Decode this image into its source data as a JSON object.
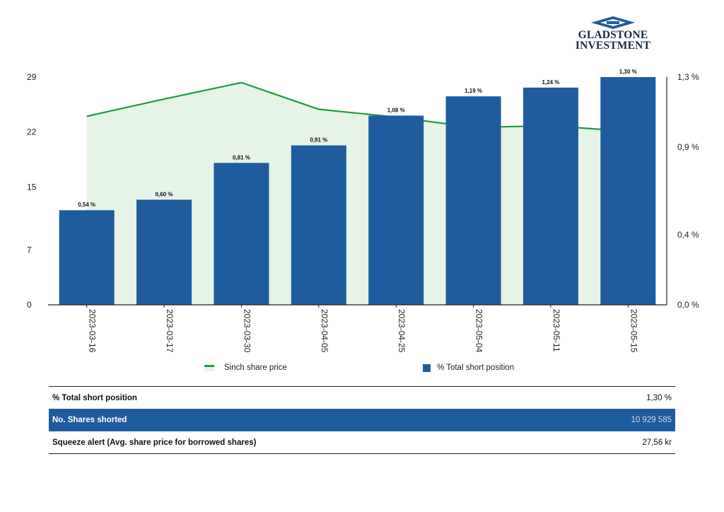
{
  "brand": {
    "line1": "GLADSTONE",
    "line2": "INVESTMENT",
    "logo_icon": "gladstone-logo-icon",
    "color": "#1a2a44"
  },
  "chart_data": {
    "type": "bar",
    "categories": [
      "2023-03-16",
      "2023-03-17",
      "2023-03-30",
      "2023-04-05",
      "2023-04-25",
      "2023-05-04",
      "2023-05-11",
      "2023-05-15"
    ],
    "series": [
      {
        "name": "% Total short position",
        "type": "bar",
        "axis": "right",
        "values": [
          0.54,
          0.6,
          0.81,
          0.91,
          1.08,
          1.19,
          1.24,
          1.3
        ],
        "labels": [
          "0,54 %",
          "0,60 %",
          "0,81 %",
          "0,91 %",
          "1,08 %",
          "1,19 %",
          "1,24 %",
          "1,30 %"
        ],
        "color": "#1f5c9e"
      },
      {
        "name": "Sinch share price",
        "type": "area",
        "axis": "left",
        "values": [
          24.0,
          26.2,
          28.3,
          24.9,
          23.9,
          22.6,
          22.8,
          22.1
        ],
        "color": "#1f9b3c",
        "fill": "#e5f4e6"
      }
    ],
    "y_left": {
      "ticks": [
        "0",
        "7",
        "15",
        "22",
        "29"
      ],
      "tick_values": [
        0,
        7,
        15,
        22,
        29
      ],
      "range": [
        0,
        29
      ]
    },
    "y_right": {
      "ticks": [
        "0,0 %",
        "0,4 %",
        "0,9 %",
        "1,3 %"
      ],
      "tick_values": [
        0,
        0.4,
        0.9,
        1.3
      ],
      "range": [
        0,
        1.3
      ]
    },
    "legend": [
      {
        "label": "Sinch share price",
        "kind": "area"
      },
      {
        "label": "% Total short position",
        "kind": "bar"
      }
    ],
    "legend_position": "bottom",
    "grid": false
  },
  "stats": [
    {
      "label": "% Total short position",
      "value": "1,30 %"
    },
    {
      "label": "No. Shares shorted",
      "value": "10 929 585"
    },
    {
      "label": "Squeeze alert (Avg. share price for borrowed shares)",
      "value": "27,56 kr"
    }
  ]
}
